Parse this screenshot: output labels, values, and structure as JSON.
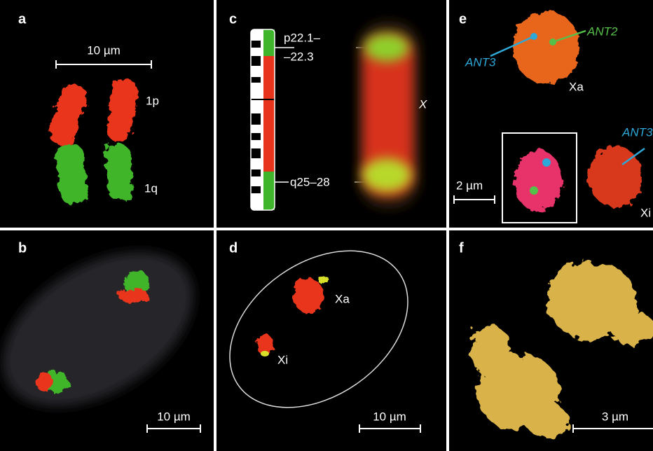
{
  "panels": {
    "a": {
      "label": "a",
      "scale_bar": "10 µm",
      "arm_p": "1p",
      "arm_q": "1q"
    },
    "b": {
      "label": "b",
      "scale_bar": "10 µm"
    },
    "c": {
      "label": "c",
      "band_p_line1": "p22.1–",
      "band_p_line2": "–22.3",
      "band_q": "q25–28",
      "chromosome": "X"
    },
    "d": {
      "label": "d",
      "xa": "Xa",
      "xi": "Xi",
      "scale_bar": "10 µm"
    },
    "e": {
      "label": "e",
      "ant3": "ANT3",
      "ant2": "ANT2",
      "xa": "Xa",
      "scale_bar": "2 µm",
      "ant3_xi": "ANT3",
      "xi": "Xi"
    },
    "f": {
      "label": "f",
      "scale_bar": "3 µm"
    }
  }
}
